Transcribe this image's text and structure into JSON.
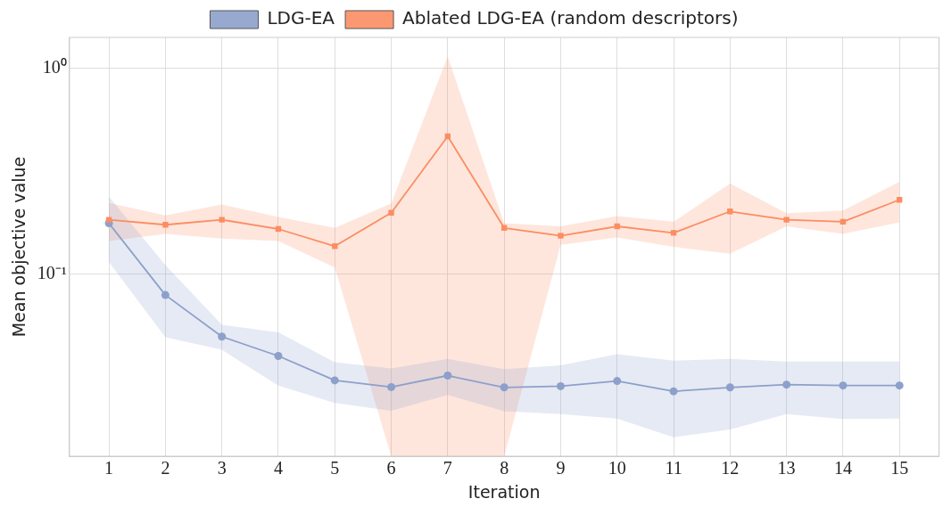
{
  "chart_data": {
    "type": "line",
    "xlabel": "Iteration",
    "ylabel": "Mean objective value",
    "log": "y",
    "grid": true,
    "legend": "top",
    "xlim": [
      0.3,
      15.7
    ],
    "xticks": [
      1,
      2,
      3,
      4,
      5,
      6,
      7,
      8,
      9,
      10,
      11,
      12,
      13,
      14,
      15
    ],
    "ylim": [
      0.0131,
      1.41
    ],
    "yticks": [
      {
        "value": 0.1,
        "label": "10⁻¹"
      },
      {
        "value": 1,
        "label": "10⁰"
      }
    ],
    "x": [
      1,
      2,
      3,
      4,
      5,
      6,
      7,
      8,
      9,
      10,
      11,
      12,
      13,
      14,
      15
    ],
    "series": [
      {
        "name": "LDG-EA",
        "color": "#8da0cb",
        "marker": "circle",
        "values": [
          0.177,
          0.0794,
          0.0499,
          0.0402,
          0.0306,
          0.0284,
          0.0323,
          0.0283,
          0.0287,
          0.0304,
          0.0271,
          0.0283,
          0.0292,
          0.0289,
          0.0289
        ],
        "lower": [
          0.115,
          0.0496,
          0.0431,
          0.0289,
          0.0238,
          0.0218,
          0.026,
          0.0217,
          0.021,
          0.02,
          0.0162,
          0.0177,
          0.021,
          0.0199,
          0.02
        ],
        "upper": [
          0.238,
          0.111,
          0.057,
          0.0523,
          0.0375,
          0.035,
          0.0389,
          0.0347,
          0.0362,
          0.041,
          0.0382,
          0.0389,
          0.0378,
          0.0378,
          0.0378
        ]
      },
      {
        "name": "Ablated LDG-EA (random descriptors)",
        "color": "#fc8d62",
        "marker": "square",
        "values": [
          0.184,
          0.174,
          0.184,
          0.166,
          0.137,
          0.199,
          0.467,
          0.168,
          0.154,
          0.171,
          0.159,
          0.202,
          0.184,
          0.18,
          0.23
        ],
        "lower": [
          0.145,
          0.157,
          0.149,
          0.145,
          0.108,
          0.0131,
          0.0131,
          0.0131,
          0.139,
          0.151,
          0.136,
          0.126,
          0.171,
          0.157,
          0.179
        ],
        "upper": [
          0.222,
          0.193,
          0.218,
          0.19,
          0.168,
          0.221,
          1.14,
          0.177,
          0.171,
          0.192,
          0.18,
          0.276,
          0.198,
          0.204,
          0.281
        ]
      }
    ]
  }
}
